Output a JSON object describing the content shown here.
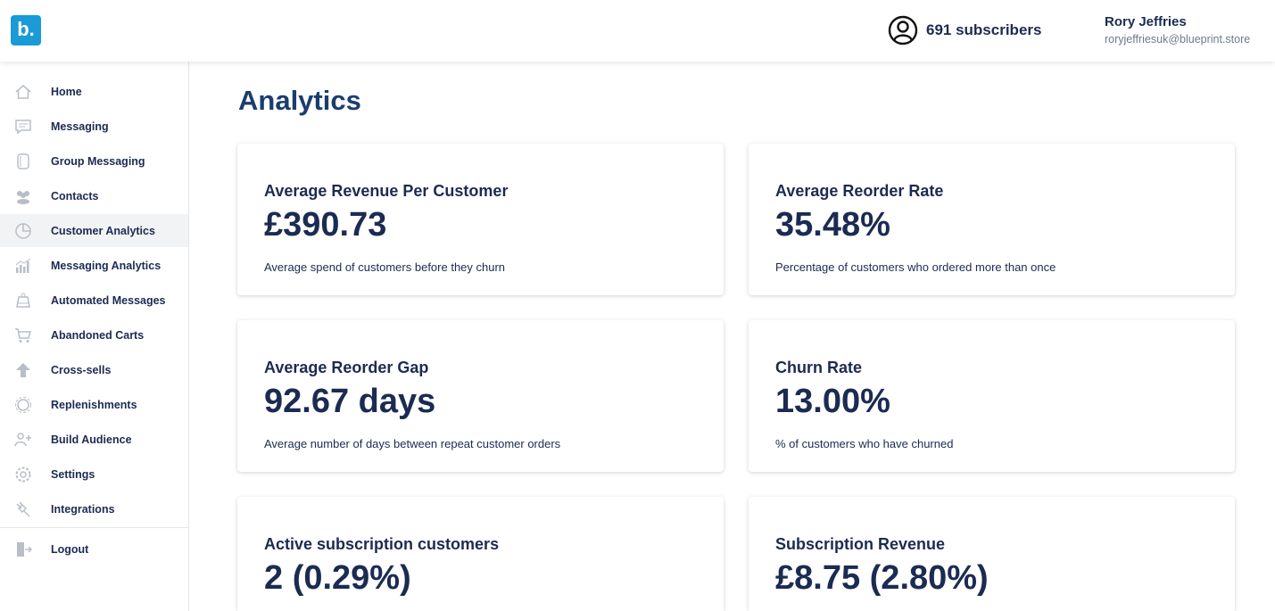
{
  "header": {
    "logo_text": "b.",
    "subscribers_label": "691 subscribers",
    "user_name": "Rory Jeffries",
    "user_email": "roryjeffriesuk@blueprint.store"
  },
  "sidebar": {
    "items": [
      {
        "label": "Home",
        "icon": "home-icon"
      },
      {
        "label": "Messaging",
        "icon": "chat-icon"
      },
      {
        "label": "Group Messaging",
        "icon": "group-chat-icon"
      },
      {
        "label": "Contacts",
        "icon": "people-icon"
      },
      {
        "label": "Customer Analytics",
        "icon": "pie-chart-icon",
        "active": true
      },
      {
        "label": "Messaging Analytics",
        "icon": "bar-chart-icon"
      },
      {
        "label": "Automated Messages",
        "icon": "robot-icon"
      },
      {
        "label": "Abandoned Carts",
        "icon": "cart-icon"
      },
      {
        "label": "Cross-sells",
        "icon": "arrow-up-icon"
      },
      {
        "label": "Replenishments",
        "icon": "refresh-icon"
      },
      {
        "label": "Build Audience",
        "icon": "add-user-icon"
      },
      {
        "label": "Settings",
        "icon": "gear-icon"
      },
      {
        "label": "Integrations",
        "icon": "plug-icon"
      }
    ],
    "logout_label": "Logout"
  },
  "main": {
    "title": "Analytics",
    "cards": [
      {
        "title": "Average Revenue Per Customer",
        "value": "£390.73",
        "description": "Average spend of customers before they churn"
      },
      {
        "title": "Average Reorder Rate",
        "value": "35.48%",
        "description": "Percentage of customers who ordered more than once"
      },
      {
        "title": "Average Reorder Gap",
        "value": "92.67 days",
        "description": "Average number of days between repeat customer orders"
      },
      {
        "title": "Churn Rate",
        "value": "13.00%",
        "description": "% of customers who have churned"
      },
      {
        "title": "Active subscription customers",
        "value": "2 (0.29%)",
        "description": ""
      },
      {
        "title": "Subscription Revenue",
        "value": "£8.75 (2.80%)",
        "description": ""
      }
    ]
  },
  "colors": {
    "brand": "#1a9ad6",
    "text": "#1b2b52",
    "title": "#1b3d6e",
    "icon": "#b8bec8",
    "active_bg": "#f2f3f5"
  }
}
